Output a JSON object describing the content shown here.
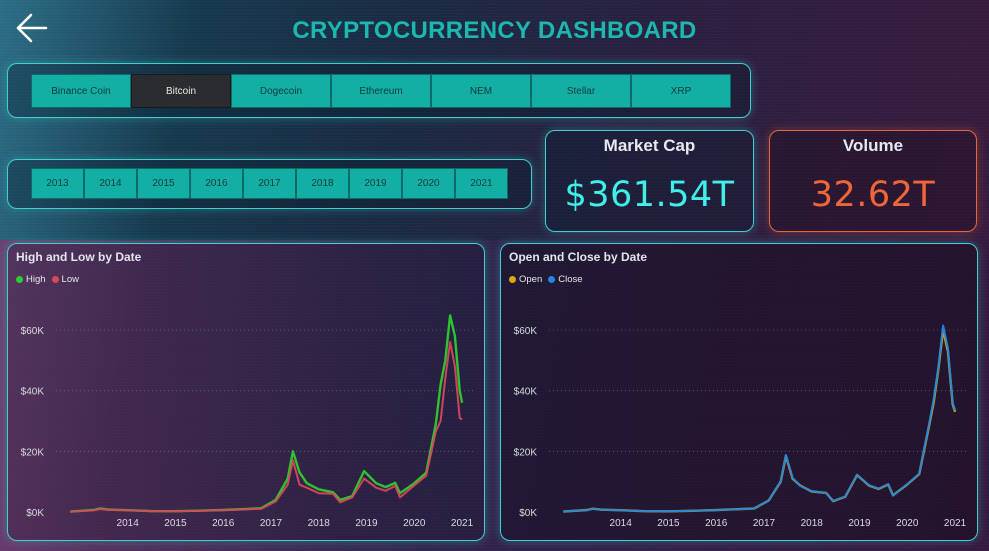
{
  "header": {
    "title": "CRYPTOCURRENCY DASHBOARD",
    "back_icon": "arrow-left-icon"
  },
  "coin_slicer": {
    "items": [
      "Binance Coin",
      "Bitcoin",
      "Dogecoin",
      "Ethereum",
      "NEM",
      "Stellar",
      "XRP"
    ],
    "selected": "Bitcoin"
  },
  "year_slicer": {
    "items": [
      "2013",
      "2014",
      "2015",
      "2016",
      "2017",
      "2018",
      "2019",
      "2020",
      "2021"
    ]
  },
  "cards": {
    "market_cap": {
      "label": "Market Cap",
      "value": "$361.54T",
      "color": "#3ff0ea"
    },
    "volume": {
      "label": "Volume",
      "value": "32.62T",
      "color": "#f0663a"
    }
  },
  "colors": {
    "accent": "#13aea4",
    "selected_bg": "#2a2c2f",
    "high": "#2ecc2e",
    "low": "#d8485a",
    "open": "#e0a800",
    "close": "#1e88e5"
  },
  "chart_data": [
    {
      "type": "line",
      "title": "High and Low by Date",
      "xlabel": "",
      "ylabel": "",
      "legend": "top-left",
      "grid": true,
      "ylim": [
        0,
        60000
      ],
      "y_ticks": [
        "$0K",
        "$20K",
        "$40K",
        "$60K"
      ],
      "x_ticks": [
        "2014",
        "2015",
        "2016",
        "2017",
        "2018",
        "2019",
        "2020",
        "2021"
      ],
      "x": [
        2013.3,
        2013.8,
        2013.92,
        2014.1,
        2014.5,
        2015.0,
        2015.5,
        2016.0,
        2016.5,
        2017.0,
        2017.3,
        2017.6,
        2017.85,
        2017.96,
        2018.1,
        2018.25,
        2018.5,
        2018.8,
        2018.95,
        2019.2,
        2019.45,
        2019.7,
        2019.9,
        2020.1,
        2020.2,
        2020.5,
        2020.75,
        2020.95,
        2021.05,
        2021.15,
        2021.25,
        2021.35,
        2021.45,
        2021.5
      ],
      "series": [
        {
          "name": "High",
          "values": [
            130,
            700,
            1150,
            800,
            600,
            300,
            260,
            430,
            650,
            1000,
            1250,
            4000,
            11000,
            20000,
            13000,
            9500,
            7500,
            6500,
            4000,
            5200,
            13500,
            9500,
            8200,
            9600,
            6200,
            9500,
            13000,
            29000,
            42000,
            50000,
            64800,
            58000,
            40000,
            36000
          ]
        },
        {
          "name": "Low",
          "values": [
            110,
            600,
            1000,
            700,
            550,
            250,
            220,
            380,
            580,
            900,
            1100,
            3500,
            9000,
            17000,
            9000,
            8000,
            6200,
            6000,
            3200,
            4800,
            11000,
            8000,
            7000,
            8600,
            4800,
            8800,
            12000,
            26500,
            30000,
            44000,
            56000,
            48000,
            31000,
            30500
          ]
        }
      ]
    },
    {
      "type": "line",
      "title": "Open and Close by Date",
      "xlabel": "",
      "ylabel": "",
      "legend": "top-left",
      "grid": true,
      "ylim": [
        0,
        60000
      ],
      "y_ticks": [
        "$0K",
        "$20K",
        "$40K",
        "$60K"
      ],
      "x_ticks": [
        "2014",
        "2015",
        "2016",
        "2017",
        "2018",
        "2019",
        "2020",
        "2021"
      ],
      "x": [
        2013.3,
        2013.8,
        2013.92,
        2014.1,
        2014.5,
        2015.0,
        2015.5,
        2016.0,
        2016.5,
        2017.0,
        2017.3,
        2017.6,
        2017.85,
        2017.96,
        2018.1,
        2018.25,
        2018.5,
        2018.8,
        2018.95,
        2019.2,
        2019.45,
        2019.7,
        2019.9,
        2020.1,
        2020.2,
        2020.5,
        2020.75,
        2020.95,
        2021.05,
        2021.15,
        2021.25,
        2021.35,
        2021.45,
        2021.5
      ],
      "series": [
        {
          "name": "Open",
          "values": [
            120,
            650,
            1080,
            750,
            580,
            270,
            240,
            410,
            620,
            950,
            1180,
            3800,
            10000,
            18500,
            11000,
            8800,
            6800,
            6300,
            3600,
            5000,
            12200,
            8700,
            7600,
            9100,
            5500,
            9100,
            12500,
            28000,
            36000,
            47000,
            60000,
            53000,
            35500,
            33000
          ]
        },
        {
          "name": "Close",
          "values": [
            120,
            650,
            1080,
            750,
            580,
            270,
            240,
            410,
            620,
            950,
            1180,
            3800,
            10000,
            18800,
            11200,
            8700,
            6900,
            6250,
            3700,
            5050,
            12300,
            8800,
            7700,
            9200,
            5400,
            9200,
            12600,
            28500,
            37000,
            47500,
            61500,
            54000,
            36000,
            33500
          ]
        }
      ]
    }
  ]
}
